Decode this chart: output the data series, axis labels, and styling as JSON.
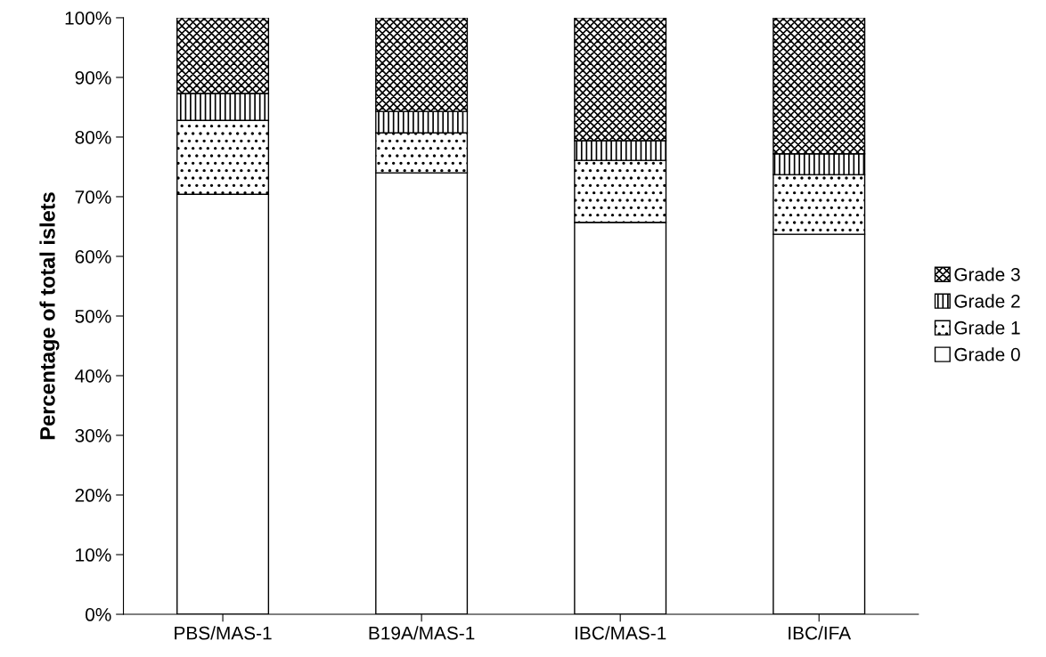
{
  "chart_data": {
    "type": "bar",
    "stacked": true,
    "ylabel": "Percentage of total islets",
    "categories": [
      "PBS/MAS-1",
      "B19A/MAS-1",
      "IBC/MAS-1",
      "IBC/IFA"
    ],
    "series": [
      {
        "name": "Grade 0",
        "color": "#ffffff",
        "values": [
          70.4,
          74.0,
          65.7,
          63.7
        ]
      },
      {
        "name": "Grade 1",
        "color": "#000000",
        "values": [
          12.4,
          6.7,
          10.4,
          10.0
        ]
      },
      {
        "name": "Grade 2",
        "color": "#000000",
        "values": [
          4.5,
          3.6,
          3.3,
          3.5
        ]
      },
      {
        "name": "Grade 3",
        "color": "#000000",
        "values": [
          12.7,
          15.7,
          20.6,
          22.8
        ]
      }
    ],
    "ylim": [
      0,
      100
    ],
    "yticks": [
      {
        "value": 0,
        "label": "0%"
      },
      {
        "value": 10,
        "label": "10%"
      },
      {
        "value": 20,
        "label": "20%"
      },
      {
        "value": 30,
        "label": "30%"
      },
      {
        "value": 40,
        "label": "40%"
      },
      {
        "value": 50,
        "label": "50%"
      },
      {
        "value": 60,
        "label": "60%"
      },
      {
        "value": 70,
        "label": "70%"
      },
      {
        "value": 80,
        "label": "80%"
      },
      {
        "value": 90,
        "label": "90%"
      },
      {
        "value": 100,
        "label": "100%"
      }
    ],
    "grid": false,
    "legend": "right"
  }
}
